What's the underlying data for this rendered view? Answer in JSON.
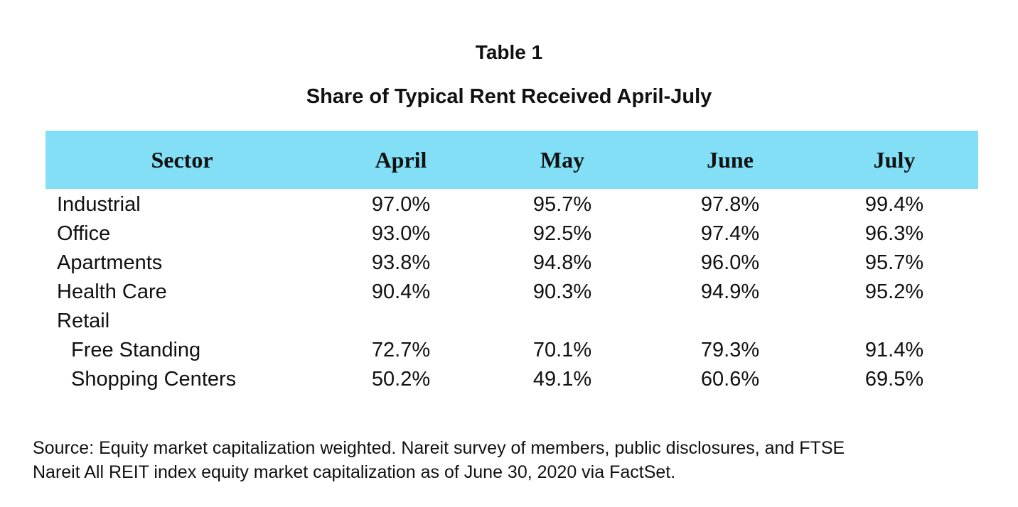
{
  "table_label": "Table 1",
  "title": "Share of Typical Rent Received April-July",
  "columns": [
    "Sector",
    "April",
    "May",
    "June",
    "July"
  ],
  "rows": [
    {
      "sector": "Industrial",
      "indent": false,
      "april": "97.0%",
      "may": "95.7%",
      "june": "97.8%",
      "july": "99.4%"
    },
    {
      "sector": "Office",
      "indent": false,
      "april": "93.0%",
      "may": "92.5%",
      "june": "97.4%",
      "july": "96.3%"
    },
    {
      "sector": "Apartments",
      "indent": false,
      "april": "93.8%",
      "may": "94.8%",
      "june": "96.0%",
      "july": "95.7%"
    },
    {
      "sector": "Health Care",
      "indent": false,
      "april": "90.4%",
      "may": "90.3%",
      "june": "94.9%",
      "july": "95.2%"
    },
    {
      "sector": "Retail",
      "indent": false,
      "april": "",
      "may": "",
      "june": "",
      "july": ""
    },
    {
      "sector": "Free Standing",
      "indent": true,
      "april": "72.7%",
      "may": "70.1%",
      "june": "79.3%",
      "july": "91.4%"
    },
    {
      "sector": "Shopping Centers",
      "indent": true,
      "april": "50.2%",
      "may": "49.1%",
      "june": "60.6%",
      "july": "69.5%"
    }
  ],
  "source_line1": "Source: Equity market capitalization weighted. Nareit survey of members, public disclosures, and FTSE",
  "source_line2": "Nareit All REIT index equity market capitalization as of June 30, 2020 via FactSet.",
  "colors": {
    "header_background": "#82dff6",
    "text": "#111111"
  }
}
